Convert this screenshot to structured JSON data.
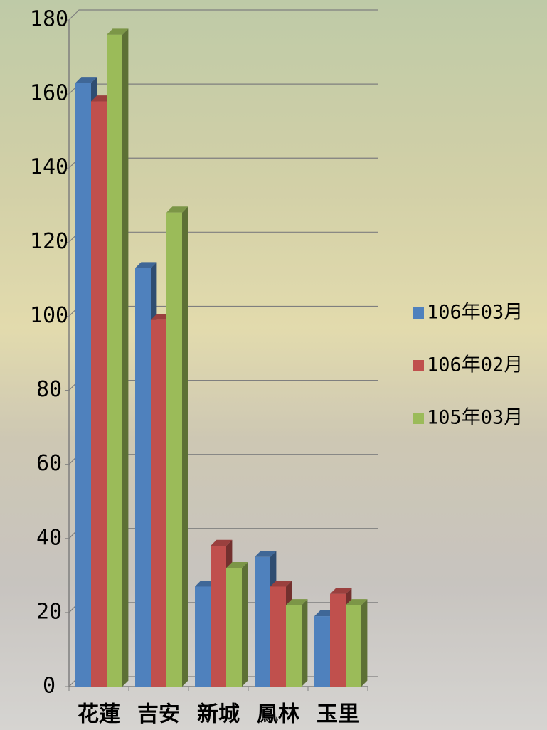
{
  "chart_data": {
    "type": "bar3d",
    "categories": [
      "花蓮",
      "吉安",
      "新城",
      "鳳林",
      "玉里"
    ],
    "series": [
      {
        "name": "106年03月",
        "color": "#4f81bd",
        "values": [
          163,
          113,
          27,
          35,
          19
        ]
      },
      {
        "name": "106年02月",
        "color": "#c0504d",
        "values": [
          158,
          99,
          38,
          27,
          25
        ]
      },
      {
        "name": "105年03月",
        "color": "#9bbb59",
        "values": [
          176,
          128,
          32,
          22,
          22
        ]
      }
    ],
    "ylim": [
      0,
      180
    ],
    "yticks": [
      0,
      20,
      40,
      60,
      80,
      100,
      120,
      140,
      160,
      180
    ],
    "grid": true
  }
}
